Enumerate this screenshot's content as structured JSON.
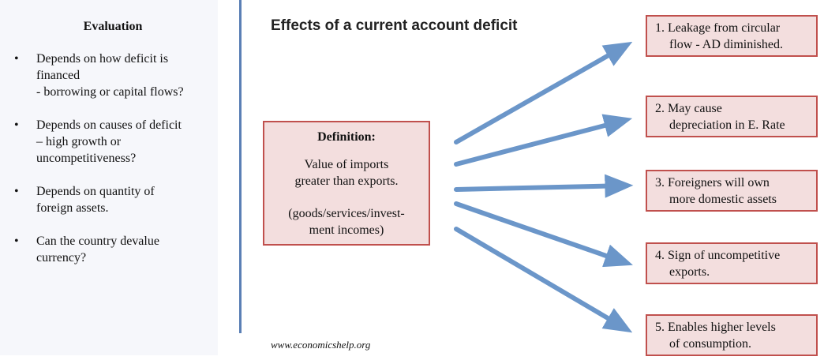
{
  "evaluation": {
    "title": "Evaluation",
    "items": [
      "Depends on how deficit is\nfinanced\n- borrowing or capital flows?",
      "Depends on causes of deficit\n– high growth or\nuncompetitiveness?",
      "Depends on quantity of\nforeign assets.",
      "Can the country devalue\ncurrency?"
    ]
  },
  "diagram": {
    "title": "Effects of a current account deficit",
    "definition": {
      "heading": "Definition:",
      "body": "Value of imports\ngreater than exports.",
      "note": "(goods/services/invest-\nment incomes)"
    },
    "effects": [
      {
        "line1": "1. Leakage from circular",
        "line2": "flow  - AD diminished."
      },
      {
        "line1": "2. May cause",
        "line2": "depreciation in E. Rate"
      },
      {
        "line1": "3. Foreigners will own",
        "line2": "more domestic assets"
      },
      {
        "line1": "4. Sign of uncompetitive",
        "line2": "exports."
      },
      {
        "line1": "5. Enables higher levels",
        "line2": "of consumption."
      }
    ],
    "arrow_color": "#6b96c9",
    "box_border_color": "#c0504d",
    "box_fill_color": "#f3dede"
  },
  "footer": {
    "url": "www.economicshelp.org"
  }
}
